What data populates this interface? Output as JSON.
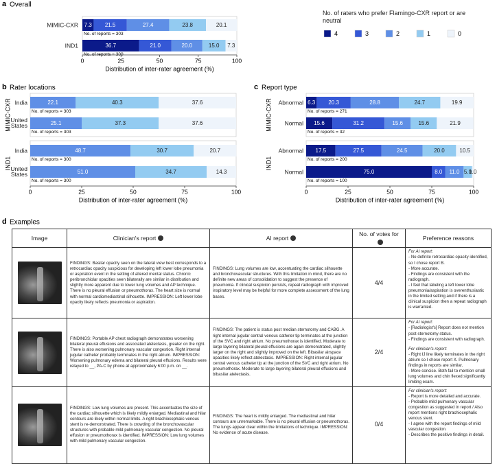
{
  "chart_data": [
    {
      "type": "stacked_bar_h",
      "panel_label": "a",
      "title": "Overall",
      "rows": [
        {
          "label": "MIMIC-CXR",
          "values": [
            7.3,
            21.5,
            27.4,
            23.8,
            20.1
          ],
          "value_labels": [
            "7.3",
            "21.5",
            "27.4",
            "23.8",
            "20.1"
          ],
          "note": "No. of reports = 303"
        },
        {
          "label": "IND1",
          "values": [
            36.7,
            21.0,
            20.0,
            15.0,
            7.3
          ],
          "value_labels": [
            "36.7",
            "21.0",
            "20.0",
            "15.0",
            "7.3"
          ],
          "note": "No. of reports = 300"
        }
      ],
      "colors": [
        "#0b1a8a",
        "#3558d6",
        "#5f8fe6",
        "#93cbf1",
        "#eef4fb"
      ],
      "xlim": [
        0,
        100
      ],
      "xticks": [
        0,
        25,
        50,
        75,
        100
      ],
      "xlabel": "Distribution of inter-rater agreement (%)",
      "legend": {
        "title": "No. of raters who prefer Flamingo-CXR report or are neutral",
        "labels": [
          "4",
          "3",
          "2",
          "1",
          "0"
        ]
      }
    },
    {
      "type": "stacked_bar_h",
      "panel_label": "b",
      "title": "Rater locations",
      "groups": [
        {
          "label": "MIMIC-CXR",
          "rows": [
            {
              "label": "India",
              "values": [
                22.1,
                40.3,
                37.6
              ],
              "value_labels": [
                "22.1",
                "40.3",
                "37.6"
              ],
              "note": "No. of reports = 303"
            },
            {
              "label": "United States",
              "values": [
                25.1,
                37.3,
                37.6
              ],
              "value_labels": [
                "25.1",
                "37.3",
                "37.6"
              ],
              "note": "No. of reports = 303"
            }
          ]
        },
        {
          "label": "IND1",
          "rows": [
            {
              "label": "India",
              "values": [
                48.7,
                30.7,
                20.7
              ],
              "value_labels": [
                "48.7",
                "30.7",
                "20.7"
              ],
              "note": "No. of reports = 300"
            },
            {
              "label": "United States",
              "values": [
                51.0,
                34.7,
                14.3
              ],
              "value_labels": [
                "51.0",
                "34.7",
                "14.3"
              ],
              "note": "No. of reports = 300"
            }
          ]
        }
      ],
      "colors": [
        "#5f8fe6",
        "#93cbf1",
        "#eef4fb"
      ],
      "xlim": [
        0,
        100
      ],
      "xticks": [
        0,
        25,
        50,
        75,
        100
      ],
      "xlabel": "Distribution of inter-rater agreement (%)"
    },
    {
      "type": "stacked_bar_h",
      "panel_label": "c",
      "title": "Report type",
      "groups": [
        {
          "label": "MIMIC-CXR",
          "rows": [
            {
              "label": "Abnormal",
              "values": [
                6.3,
                20.3,
                28.8,
                24.7,
                19.9
              ],
              "value_labels": [
                "6.3",
                "20.3",
                "28.8",
                "24.7",
                "19.9"
              ],
              "note": "No. of reports = 271"
            },
            {
              "label": "Normal",
              "values": [
                15.6,
                31.2,
                15.6,
                15.6,
                21.9
              ],
              "value_labels": [
                "15.6",
                "31.2",
                "15.6",
                "15.6",
                "21.9"
              ],
              "note": "No. of reports = 32"
            }
          ]
        },
        {
          "label": "IND1",
          "rows": [
            {
              "label": "Abnormal",
              "values": [
                17.5,
                27.5,
                24.5,
                20.0,
                10.5
              ],
              "value_labels": [
                "17.5",
                "27.5",
                "24.5",
                "20.0",
                "10.5"
              ],
              "note": "No. of reports = 200"
            },
            {
              "label": "Normal",
              "values": [
                75.0,
                8.0,
                11.0,
                5.0,
                1.0
              ],
              "value_labels": [
                "75.0",
                "8.0",
                "11.0",
                "5.0",
                "1.0"
              ],
              "note": "No. of reports = 100"
            }
          ]
        }
      ],
      "colors": [
        "#0b1a8a",
        "#3558d6",
        "#5f8fe6",
        "#93cbf1",
        "#eef4fb"
      ],
      "xlim": [
        0,
        100
      ],
      "xticks": [
        0,
        25,
        50,
        75,
        100
      ],
      "xlabel": "Distribution of inter-rater agreement (%)"
    }
  ],
  "examples": {
    "panel_label": "d",
    "title": "Examples",
    "header": [
      "Image",
      "Clinician's report",
      "AI report",
      "No. of votes for",
      "Preference reasons"
    ],
    "rows": [
      {
        "clinician_report": "FINDINGS: Basilar opacity seen on the lateral view best corresponds to a retrocardiac opacity suspicious for developing left lower lobe pneumonia or aspiration event in the setting of altered mental status. Chronic peribronchiolar opacities seen bilaterally are similar in distribution and slightly more apparent due to lower lung volumes and AP technique. There is no pleural effusion or pneumothorax. The heart size is normal with normal cardiomediastinal silhouette. IMPRESSION: Left lower lobe opacity likely reflects pneumonia or aspiration.",
        "ai_report": "FINDINGS: Lung volumes are low, accentuating the cardiac silhouette and bronchovascular structures. With this limitation in mind, there are no definite new areas of consolidation to suggest the presence of pneumonia. If clinical suspicion persists, repeat radiograph with improved inspiratory level may be helpful for more complete assessment of the lung bases.",
        "votes": "4/4",
        "reasons": [
          {
            "heading": "For AI report:",
            "items": [
              "- No definite retrocardiac opacity identified, so I chose report B.",
              "- More accurate.",
              "- Findings are consistent with the radiograph.",
              "- I feel that labeling a left lower lobe pneumonia/aspiration is overenthusiastic in the limited setting and if there is a clinical suspicion then a repeat radiograph is warranted."
            ]
          }
        ]
      },
      {
        "clinician_report": "FINDINGS: Portable AP chest radiograph demonstrates worsening bilateral pleural effusions and associated atelectasis, greater on the right. There is also worsening pulmonary vascular congestion. Right internal jugular catheter probably terminates in the right atrium. IMPRESSION: Worsening pulmonary edema and bilateral pleural effusions. Results were relayed to __, PA-C by phone at approximately 6:00 p.m. on __.",
        "ai_report": "FINDINGS: The patient is status post median sternotomy and CABG. A right internal jugular central venous catheter tip terminates at the junction of the SVC and right atrium. No pneumothorax is identified. Moderate to large layering bilateral pleural effusions are again demonstrated, slightly larger on the right and slightly improved on the left. Bibasilar airspace opacities likely reflect atelectasis. IMPRESSION: Right internal jugular central venous catheter tip at the junction of the SVC and right atrium. No pneumothorax. Moderate to large layering bilateral pleural effusions and bibasilar atelectasis.",
        "votes": "2/4",
        "reasons": [
          {
            "heading": "For AI report:",
            "items": [
              "- [Radiologist's] Report does not mention post-sternotomy status.",
              "- Findings are consistent with radiograph."
            ]
          },
          {
            "heading": "For clinician's report:",
            "items": [
              "- Right IJ line likely terminates in the right atrium so I chose report X. Pulmonary findings in reports are similar.",
              "- More concise. Both fail to mention small lung volumes and chin flexed significantly limiting exam."
            ]
          }
        ]
      },
      {
        "clinician_report": "FINDINGS: Low lung volumes are present. This accentuates the size of the cardiac silhouette which is likely mildly enlarged. Mediastinal and hilar contours are likely within normal limits. A right brachiocephalic venous stent is re-demonstrated. There is crowding of the bronchovascular structures with probable mild pulmonary vascular congestion. No pleural effusion or pneumothorax is identified. IMPRESSION: Low lung volumes with mild pulmonary vascular congestion.",
        "ai_report": "FINDINGS: The heart is mildly enlarged. The mediastinal and hilar contours are unremarkable. There is no pleural effusion or pneumothorax. The lungs appear clear within the limitations of technique. IMPRESSION: No evidence of acute disease.",
        "votes": "0/4",
        "reasons": [
          {
            "heading": "For clinician's report:",
            "items": [
              "- Report is more detailed and accurate.",
              "- Probable mild pulmonary vascular congestion as suggested in report / Also report mentions right brachiocephalic venous stent.",
              "- I agree with the report findings of mild vascular congestion.",
              "- Describes the positive findings in detail."
            ]
          }
        ]
      }
    ]
  }
}
